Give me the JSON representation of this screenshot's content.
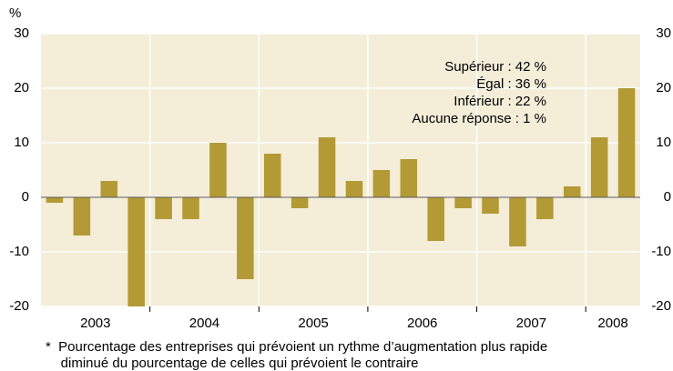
{
  "chart_data": {
    "type": "bar",
    "y_unit": "%",
    "values": [
      -1,
      -7,
      3,
      -20,
      -4,
      -4,
      10,
      -15,
      8,
      -2,
      11,
      3,
      5,
      7,
      -8,
      -2,
      -3,
      -9,
      -4,
      2,
      11,
      20
    ],
    "groups": [
      {
        "label": "2003",
        "size": 4
      },
      {
        "label": "2004",
        "size": 4
      },
      {
        "label": "2005",
        "size": 4
      },
      {
        "label": "2006",
        "size": 4
      },
      {
        "label": "2007",
        "size": 4
      },
      {
        "label": "2008",
        "size": 2
      }
    ],
    "color": "#b39a35",
    "ylim": [
      -20,
      30
    ],
    "yticks": [
      -20,
      -10,
      0,
      10,
      20,
      30
    ],
    "grid": true,
    "annotation": [
      "Supérieur : 42 %",
      "Égal : 36 %",
      "Inférieur : 22 %",
      "Aucune réponse :   1 %"
    ],
    "footnote": [
      "*  Pourcentage des entreprises qui prévoient un rythme d’augmentation plus rapide",
      "    diminué du pourcentage de celles qui prévoient le contraire"
    ]
  }
}
